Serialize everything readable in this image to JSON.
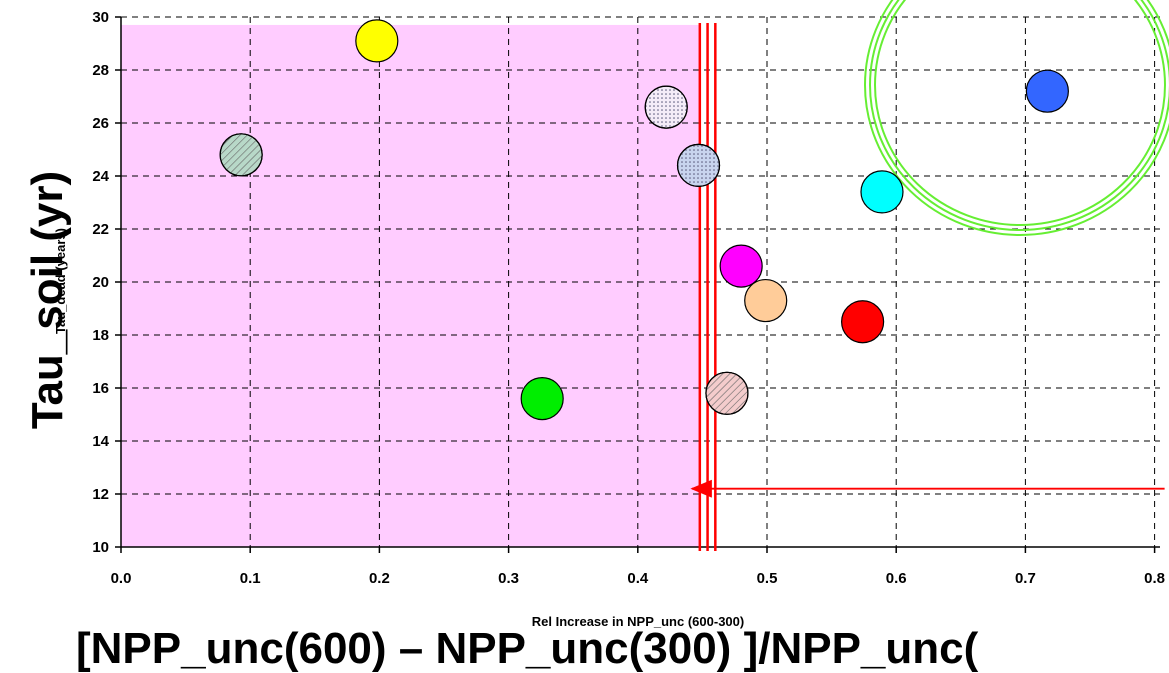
{
  "chart_data": {
    "type": "scatter",
    "xlabel": "Rel Increase in NPP_unc (600-300)",
    "ylabel": "Tau_dead (years)",
    "overlay_xlabel": "[NPP_unc(600) – NPP_unc(300) ]/NPP_unc(",
    "overlay_ylabel": "Tau_soil (yr)",
    "xlim": [
      0.0,
      0.8
    ],
    "ylim": [
      10,
      30
    ],
    "x_ticks": [
      "0.0",
      "0.1",
      "0.2",
      "0.3",
      "0.4",
      "0.5",
      "0.6",
      "0.7",
      "0.8"
    ],
    "y_ticks": [
      "10",
      "12",
      "14",
      "16",
      "18",
      "20",
      "22",
      "24",
      "26",
      "28",
      "30"
    ],
    "grid": true,
    "points": [
      {
        "x": 0.093,
        "y": 24.8,
        "color": "#b8d8c8",
        "pattern": "hatch"
      },
      {
        "x": 0.198,
        "y": 29.1,
        "color": "#ffff00"
      },
      {
        "x": 0.326,
        "y": 15.6,
        "color": "#00ee00"
      },
      {
        "x": 0.422,
        "y": 26.6,
        "color": "#f4ecf8",
        "pattern": "dots"
      },
      {
        "x": 0.447,
        "y": 24.4,
        "color": "#c8d4ee",
        "pattern": "dots"
      },
      {
        "x": 0.469,
        "y": 15.8,
        "color": "#f4cccc",
        "pattern": "hatch"
      },
      {
        "x": 0.48,
        "y": 20.6,
        "color": "#ff00ff"
      },
      {
        "x": 0.499,
        "y": 19.3,
        "color": "#ffcc99"
      },
      {
        "x": 0.574,
        "y": 18.5,
        "color": "#ff0000"
      },
      {
        "x": 0.589,
        "y": 23.4,
        "color": "#00ffff"
      },
      {
        "x": 0.717,
        "y": 27.2,
        "color": "#3366ff"
      }
    ],
    "shaded_region": {
      "x": [
        0.0,
        0.448
      ],
      "y": [
        10,
        29.7
      ],
      "color": "#ffccff"
    },
    "vertical_lines_x": [
      0.448,
      0.454,
      0.46
    ],
    "arrow": {
      "from_x": 0.8,
      "to_x": 0.442,
      "y": 12.2,
      "color": "#ff0000"
    },
    "colors": {
      "highlight": "#66ee33",
      "lines": "#ff0000"
    }
  }
}
